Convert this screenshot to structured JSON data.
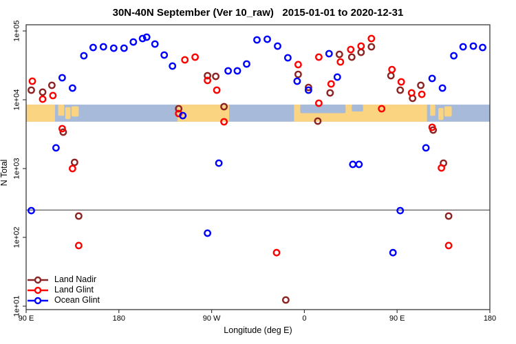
{
  "chart_data": {
    "type": "scatter",
    "title": "30N-40N September (Ver 10_raw)   2015-01-01 to 2020-12-31",
    "xlabel": "Longitude (deg E)",
    "ylabel": "N Total",
    "x_axis": {
      "range_deg_east_of_90E": [
        0,
        450
      ],
      "ticks": [
        {
          "deg": 0,
          "label": "90 E"
        },
        {
          "deg": 90,
          "label": "180"
        },
        {
          "deg": 180,
          "label": "90 W"
        },
        {
          "deg": 270,
          "label": "0"
        },
        {
          "deg": 360,
          "label": "90 E"
        },
        {
          "deg": 450,
          "label": "180"
        }
      ]
    },
    "y_axis": {
      "scale": "log10",
      "range": [
        10,
        100000
      ],
      "ticks": [
        {
          "value": 100000,
          "label": "1e+05"
        },
        {
          "value": 10000,
          "label": "1e+04"
        },
        {
          "value": 1000,
          "label": "1e+03"
        },
        {
          "value": 100,
          "label": "1e+02"
        },
        {
          "value": 10,
          "label": "1e+01"
        }
      ]
    },
    "reference_line_value": 250,
    "map_strip": {
      "comment": "latitude-band world map 30N-40N drawn across the plot",
      "ocean_color": "#a7bad9",
      "land_color": "#fad481",
      "top_value": 8500,
      "bottom_value": 4800,
      "land_deg": [
        [
          0,
          28
        ],
        [
          147,
          197
        ],
        [
          260,
          389
        ]
      ],
      "island_deg": [
        [
          31,
          37,
          0,
          0.65
        ],
        [
          38,
          43,
          0.15,
          0.85
        ],
        [
          44,
          51,
          0.1,
          0.7
        ],
        [
          392,
          397,
          0,
          0.65
        ],
        [
          400,
          405,
          0.2,
          0.9
        ],
        [
          406,
          413,
          0.1,
          0.7
        ]
      ],
      "sea_deg": [
        [
          266,
          310,
          0,
          0.5
        ],
        [
          316,
          327,
          0,
          0.4
        ]
      ]
    },
    "legend_position": "bottom-left",
    "grid": false,
    "series": [
      {
        "name": "Land Nadir",
        "color": "#8b2323",
        "points": [
          [
            5,
            13800
          ],
          [
            16,
            12900
          ],
          [
            25,
            16200
          ],
          [
            36,
            3390
          ],
          [
            47,
            1230
          ],
          [
            51,
            204
          ],
          [
            148,
            7410
          ],
          [
            176,
            22400
          ],
          [
            184,
            21900
          ],
          [
            192,
            7940
          ],
          [
            252,
            12.3
          ],
          [
            264,
            23400
          ],
          [
            274,
            15100
          ],
          [
            283,
            4900
          ],
          [
            295,
            12600
          ],
          [
            304,
            45700
          ],
          [
            316,
            41700
          ],
          [
            325,
            49000
          ],
          [
            335,
            58900
          ],
          [
            354,
            22400
          ],
          [
            363,
            13800
          ],
          [
            375,
            10500
          ],
          [
            383,
            16200
          ],
          [
            395,
            3630
          ],
          [
            405,
            1200
          ],
          [
            410,
            204
          ]
        ]
      },
      {
        "name": "Land Glint",
        "color": "#ff0000",
        "points": [
          [
            6,
            18600
          ],
          [
            16,
            10200
          ],
          [
            26,
            11500
          ],
          [
            35,
            3800
          ],
          [
            45,
            1000
          ],
          [
            51,
            76
          ],
          [
            148,
            6310
          ],
          [
            154,
            38000
          ],
          [
            164,
            41700
          ],
          [
            176,
            19100
          ],
          [
            185,
            13800
          ],
          [
            192,
            4790
          ],
          [
            243,
            60
          ],
          [
            264,
            32400
          ],
          [
            284,
            8910
          ],
          [
            284,
            41700
          ],
          [
            296,
            17000
          ],
          [
            305,
            35500
          ],
          [
            315,
            53700
          ],
          [
            325,
            60300
          ],
          [
            335,
            77600
          ],
          [
            345,
            7410
          ],
          [
            355,
            27500
          ],
          [
            364,
            18200
          ],
          [
            374,
            12600
          ],
          [
            384,
            12000
          ],
          [
            394,
            3980
          ],
          [
            403,
            1020
          ],
          [
            410,
            76
          ]
        ]
      },
      {
        "name": "Ocean Glint",
        "color": "#0000ff",
        "points": [
          [
            5,
            245
          ],
          [
            29,
            2000
          ],
          [
            35,
            20900
          ],
          [
            45,
            14800
          ],
          [
            56,
            43700
          ],
          [
            65,
            57500
          ],
          [
            75,
            58900
          ],
          [
            85,
            56200
          ],
          [
            95,
            56200
          ],
          [
            104,
            69200
          ],
          [
            113,
            77600
          ],
          [
            117,
            81300
          ],
          [
            125,
            64600
          ],
          [
            134,
            44700
          ],
          [
            142,
            30900
          ],
          [
            152,
            5890
          ],
          [
            176,
            115
          ],
          [
            187,
            1200
          ],
          [
            196,
            26300
          ],
          [
            205,
            26300
          ],
          [
            214,
            33100
          ],
          [
            224,
            74100
          ],
          [
            234,
            75900
          ],
          [
            244,
            60300
          ],
          [
            254,
            40700
          ],
          [
            263,
            18600
          ],
          [
            274,
            13800
          ],
          [
            294,
            46800
          ],
          [
            302,
            21400
          ],
          [
            317,
            1150
          ],
          [
            323,
            1150
          ],
          [
            356,
            60
          ],
          [
            363,
            245
          ],
          [
            388,
            2000
          ],
          [
            394,
            20400
          ],
          [
            404,
            14800
          ],
          [
            415,
            43700
          ],
          [
            424,
            58900
          ],
          [
            434,
            60300
          ],
          [
            443,
            57500
          ]
        ]
      }
    ]
  }
}
